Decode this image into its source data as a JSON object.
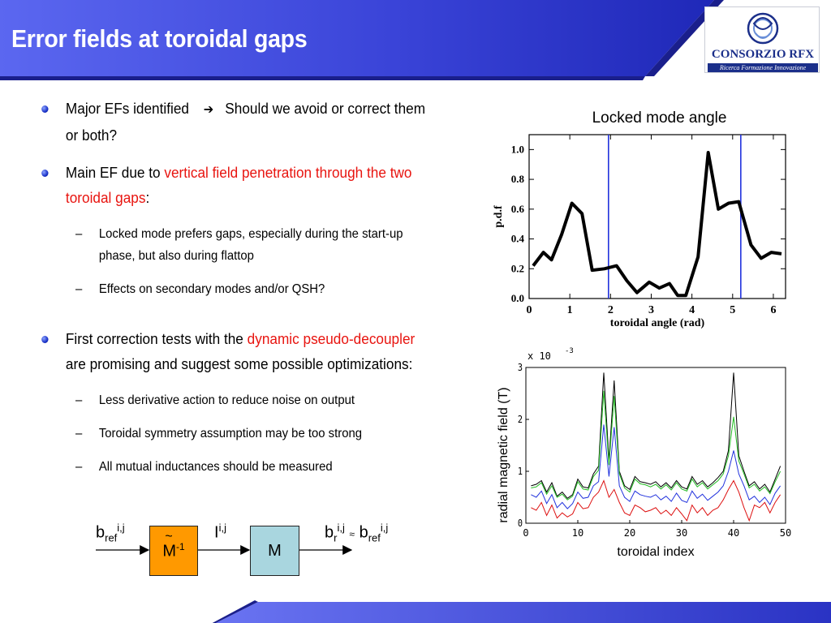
{
  "slide": {
    "title": "Error fields at toroidal gaps",
    "logo": {
      "name": "CONSORZIO RFX",
      "tagline": "Ricerca Formazione Innovazione"
    }
  },
  "bullets": {
    "b1": {
      "text_a": "Major EFs identified",
      "arrow": "➔",
      "text_b": "Should we avoid or correct them or both?"
    },
    "b2": {
      "text_a": "Main EF due to ",
      "red": "vertical field penetration through the two toroidal gaps",
      "text_b": ":"
    },
    "b2_sub": [
      "Locked mode prefers gaps, especially during the start-up phase, but also during flattop",
      "Effects on secondary modes and/or QSH?"
    ],
    "b3": {
      "text_a": "First correction tests with the ",
      "red": "dynamic pseudo-decoupler",
      "text_b": " are promising and suggest some possible optimizations:"
    },
    "b3_sub": [
      "Less derivative action to reduce noise on output",
      "Toroidal symmetry assumption may be too strong",
      "All mutual inductances should be measured"
    ]
  },
  "diagram": {
    "input": "b",
    "input_sub": "ref",
    "input_sup": "i,j",
    "box1": "M",
    "box1_tilde": "~",
    "box1_sup": "-1",
    "mid": "I",
    "mid_sup": "i,j",
    "box2": "M",
    "out_a": "b",
    "out_a_sub": "r",
    "out_a_sup": "i,j",
    "approx": "≈",
    "out_b": "b",
    "out_b_sub": "ref",
    "out_b_sup": "i,j",
    "box1_color": "#ff9900",
    "box2_color": "#a9d6df"
  },
  "chart_data": [
    {
      "type": "line",
      "title": "Locked mode angle",
      "xlabel": "toroidal angle (rad)",
      "ylabel": "p.d.f",
      "xlim": [
        0,
        6.3
      ],
      "ylim": [
        0,
        1.1
      ],
      "xticks": [
        "0",
        "1",
        "2",
        "3",
        "4",
        "5",
        "6"
      ],
      "yticks": [
        "0.0",
        "0.2",
        "0.4",
        "0.6",
        "0.8",
        "1.0"
      ],
      "series": [
        {
          "x": [
            0.1,
            0.35,
            0.55,
            0.8,
            1.05,
            1.3,
            1.55,
            1.85,
            2.15,
            2.4,
            2.65,
            2.95,
            3.2,
            3.45,
            3.65,
            3.85,
            4.15,
            4.4,
            4.65,
            4.9,
            5.15,
            5.45,
            5.7,
            5.95,
            6.2
          ],
          "y": [
            0.22,
            0.31,
            0.26,
            0.43,
            0.64,
            0.57,
            0.19,
            0.2,
            0.22,
            0.12,
            0.04,
            0.11,
            0.07,
            0.1,
            0.02,
            0.02,
            0.28,
            0.98,
            0.6,
            0.64,
            0.65,
            0.36,
            0.27,
            0.31,
            0.3
          ],
          "color": "#000000"
        }
      ],
      "vlines": [
        1.95,
        5.2
      ],
      "vline_color": "#2233dd"
    },
    {
      "type": "line",
      "xlabel": "toroidal index",
      "ylabel": "radial magnetic field (T)",
      "y_multiplier": "x 10",
      "y_multiplier_exp": "-3",
      "xlim": [
        0,
        50
      ],
      "ylim": [
        0,
        3
      ],
      "xticks": [
        "0",
        "10",
        "20",
        "30",
        "40",
        "50"
      ],
      "yticks": [
        "0",
        "1",
        "2",
        "3"
      ],
      "series": [
        {
          "color": "#000000",
          "values": [
            0.72,
            0.75,
            0.82,
            0.6,
            0.78,
            0.52,
            0.6,
            0.48,
            0.55,
            0.85,
            0.7,
            0.68,
            0.95,
            1.1,
            2.9,
            1.2,
            2.75,
            1.0,
            0.72,
            0.65,
            0.9,
            0.8,
            0.78,
            0.75,
            0.8,
            0.7,
            0.78,
            0.68,
            0.82,
            0.7,
            0.66,
            0.9,
            0.75,
            0.82,
            0.7,
            0.78,
            0.88,
            1.0,
            1.4,
            2.9,
            1.3,
            1.0,
            0.72,
            0.8,
            0.66,
            0.75,
            0.6,
            0.85,
            1.1
          ]
        },
        {
          "color": "#22bb22",
          "values": [
            0.68,
            0.7,
            0.78,
            0.56,
            0.72,
            0.5,
            0.56,
            0.45,
            0.52,
            0.8,
            0.66,
            0.64,
            0.9,
            1.02,
            2.55,
            1.12,
            2.45,
            0.95,
            0.68,
            0.6,
            0.85,
            0.76,
            0.74,
            0.7,
            0.75,
            0.66,
            0.74,
            0.64,
            0.78,
            0.66,
            0.62,
            0.85,
            0.7,
            0.78,
            0.66,
            0.74,
            0.82,
            0.95,
            1.3,
            2.05,
            1.2,
            0.95,
            0.68,
            0.75,
            0.62,
            0.7,
            0.57,
            0.8,
            1.0
          ]
        },
        {
          "color": "#2233dd",
          "values": [
            0.55,
            0.5,
            0.62,
            0.38,
            0.55,
            0.3,
            0.4,
            0.28,
            0.38,
            0.6,
            0.48,
            0.5,
            0.72,
            0.8,
            1.9,
            0.9,
            1.85,
            0.72,
            0.5,
            0.42,
            0.62,
            0.55,
            0.52,
            0.5,
            0.55,
            0.45,
            0.52,
            0.42,
            0.58,
            0.44,
            0.4,
            0.62,
            0.48,
            0.56,
            0.44,
            0.52,
            0.6,
            0.72,
            1.0,
            1.4,
            0.95,
            0.72,
            0.45,
            0.52,
            0.4,
            0.5,
            0.36,
            0.58,
            0.72
          ]
        },
        {
          "color": "#dd1111",
          "values": [
            0.3,
            0.25,
            0.4,
            0.15,
            0.35,
            0.1,
            0.2,
            0.12,
            0.18,
            0.4,
            0.28,
            0.3,
            0.5,
            0.6,
            0.82,
            0.5,
            0.65,
            0.4,
            0.2,
            0.15,
            0.35,
            0.3,
            0.22,
            0.25,
            0.3,
            0.18,
            0.25,
            0.15,
            0.3,
            0.18,
            0.05,
            0.35,
            0.2,
            0.3,
            0.15,
            0.25,
            0.3,
            0.45,
            0.65,
            0.82,
            0.6,
            0.3,
            0.05,
            0.35,
            0.3,
            0.4,
            0.2,
            0.4,
            0.55
          ]
        }
      ]
    }
  ]
}
